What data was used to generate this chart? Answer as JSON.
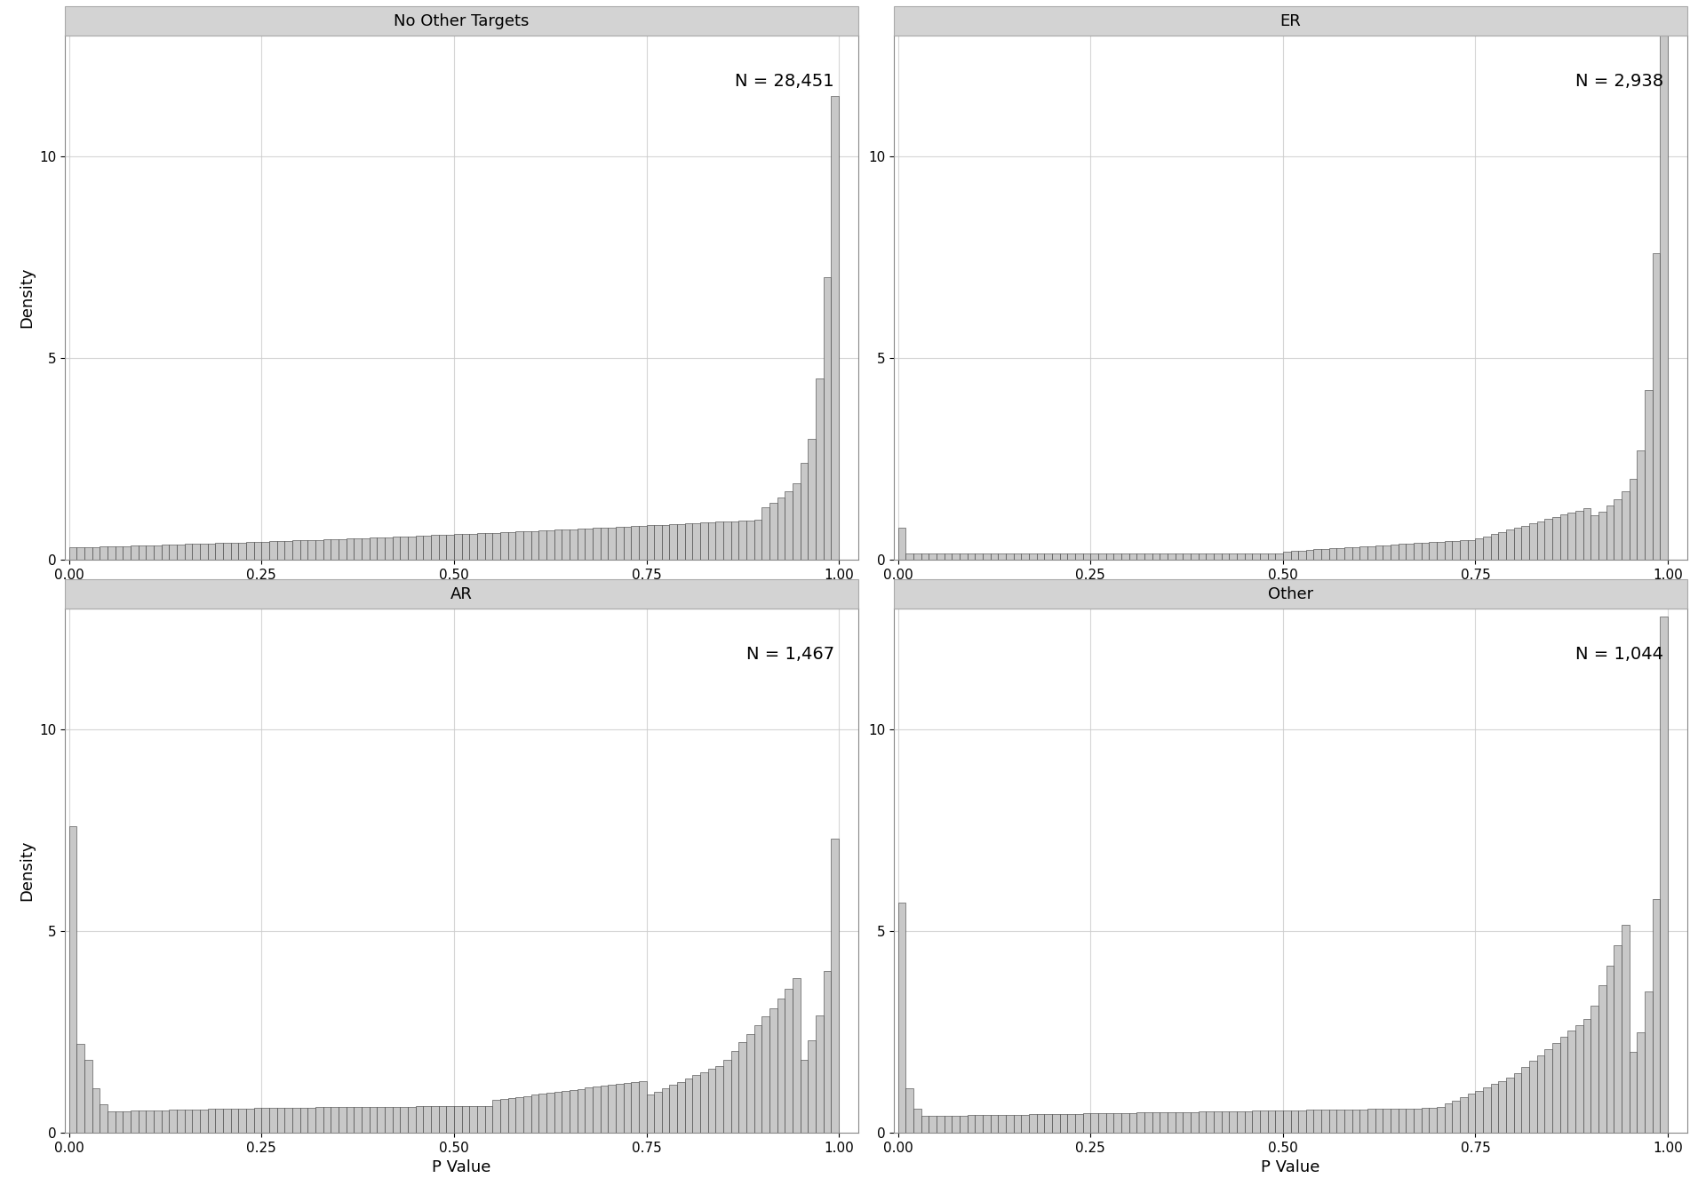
{
  "panels": [
    {
      "title": "No Other Targets",
      "n_label": "N = 28,451",
      "distribution": "no_other_targets",
      "ylim": [
        0,
        13
      ],
      "yticks": [
        0,
        5,
        10
      ]
    },
    {
      "title": "ER",
      "n_label": "N = 2,938",
      "distribution": "er",
      "ylim": [
        0,
        13
      ],
      "yticks": [
        0,
        5,
        10
      ]
    },
    {
      "title": "AR",
      "n_label": "N = 1,467",
      "distribution": "ar",
      "ylim": [
        0,
        13
      ],
      "yticks": [
        0,
        5,
        10
      ]
    },
    {
      "title": "Other",
      "n_label": "N = 1,044",
      "distribution": "other",
      "ylim": [
        0,
        13
      ],
      "yticks": [
        0,
        5,
        10
      ]
    }
  ],
  "xlabel": "P Value",
  "ylabel": "Density",
  "n_bins": 100,
  "bar_color": "#c8c8c8",
  "bar_edge_color": "#3a3a3a",
  "title_bg_color": "#d3d3d3",
  "title_border_color": "#aaaaaa",
  "background_color": "#ffffff",
  "grid_color": "#cccccc",
  "title_fontsize": 13,
  "label_fontsize": 13,
  "tick_fontsize": 11,
  "annotation_fontsize": 14
}
